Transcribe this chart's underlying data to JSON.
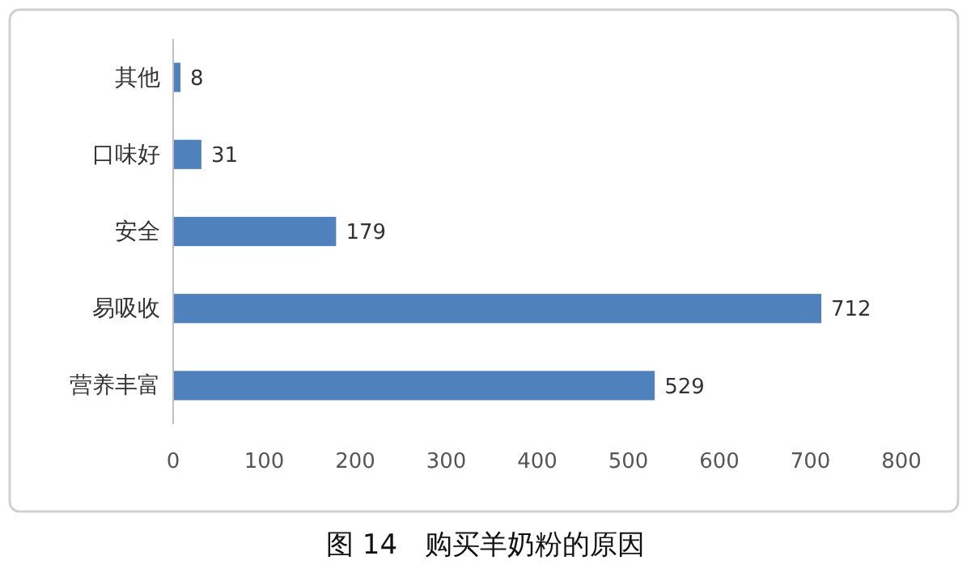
{
  "chart_data": {
    "type": "bar",
    "orientation": "horizontal",
    "title": "图 14　购买羊奶粉的原因",
    "categories": [
      "其他",
      "口味好",
      "安全",
      "易吸收",
      "营养丰富"
    ],
    "values": [
      8,
      31,
      179,
      712,
      529
    ],
    "color": "#4f81bd",
    "xlim": [
      0,
      800
    ],
    "xticks": [
      0,
      100,
      200,
      300,
      400,
      500,
      600,
      700,
      800
    ],
    "grid": false,
    "data_labels": true
  }
}
